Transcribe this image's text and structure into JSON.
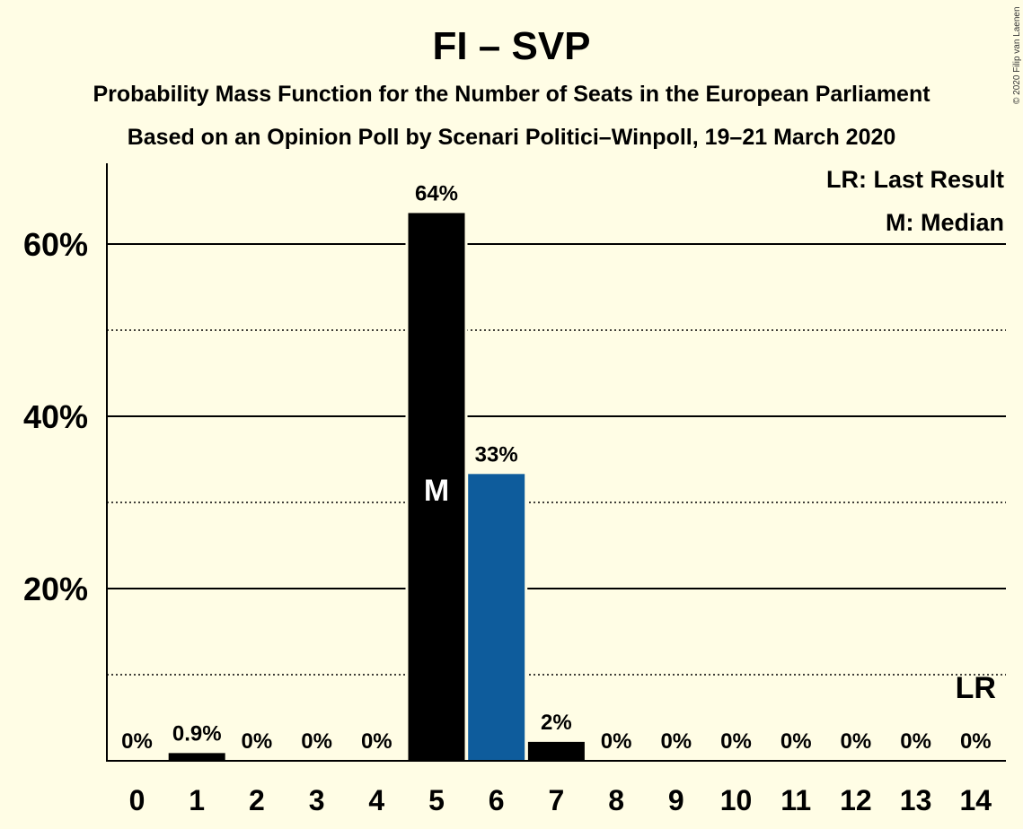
{
  "chart_data": {
    "type": "bar",
    "title": "FI – SVP",
    "subtitle_1": "Probability Mass Function for the Number of Seats in the European Parliament",
    "subtitle_2": "Based on an Opinion Poll by Scenari Politici–Winpoll, 19–21 March 2020",
    "copyright": "© 2020 Filip van Laenen",
    "categories": [
      "0",
      "1",
      "2",
      "3",
      "4",
      "5",
      "6",
      "7",
      "8",
      "9",
      "10",
      "11",
      "12",
      "13",
      "14"
    ],
    "values": [
      0,
      0.9,
      0,
      0,
      0,
      63.6,
      33.3,
      2.2,
      0,
      0,
      0,
      0,
      0,
      0,
      0
    ],
    "value_labels": [
      "0%",
      "0.9%",
      "0%",
      "0%",
      "0%",
      "64%",
      "33%",
      "2%",
      "0%",
      "0%",
      "0%",
      "0%",
      "0%",
      "0%",
      "0%"
    ],
    "ylim": [
      0,
      69
    ],
    "y_major_ticks": [
      20,
      40,
      60
    ],
    "y_major_labels": [
      "20%",
      "40%",
      "60%"
    ],
    "y_minor_ticks": [
      10,
      30,
      50
    ],
    "bar_colors": [
      "#000000",
      "#000000",
      "#000000",
      "#000000",
      "#000000",
      "#000000",
      "#0E5C9C",
      "#000000",
      "#000000",
      "#000000",
      "#000000",
      "#000000",
      "#000000",
      "#000000",
      "#000000"
    ],
    "median_index": 5,
    "median_marker": "M",
    "last_result_index": 14,
    "last_result_marker": "LR",
    "legend": [
      "LR: Last Result",
      "M: Median"
    ],
    "legend_position": "top-right",
    "background_color": "#FFFDE5"
  }
}
